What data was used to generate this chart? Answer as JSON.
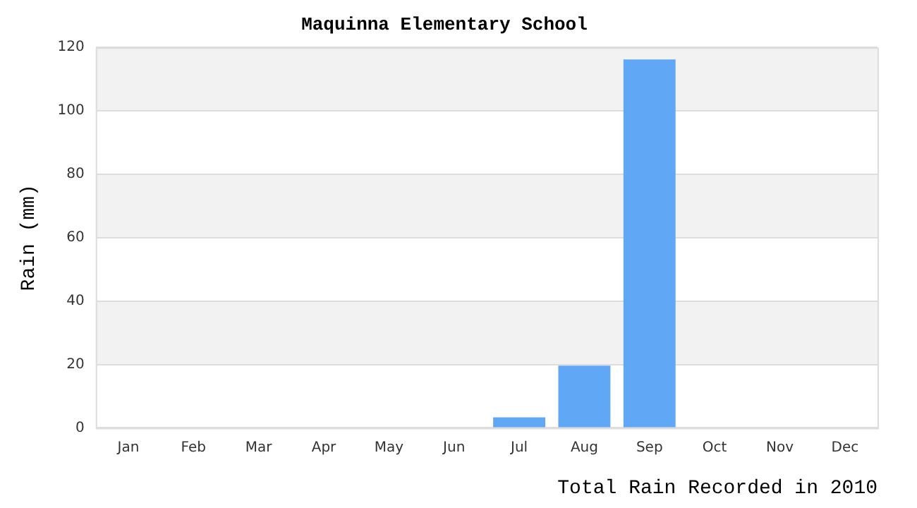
{
  "chart_data": {
    "type": "bar",
    "title": "Maquinna Elementary School",
    "xlabel": "Total Rain Recorded in 2010",
    "ylabel": "Rain (mm)",
    "categories": [
      "Jan",
      "Feb",
      "Mar",
      "Apr",
      "May",
      "Jun",
      "Jul",
      "Aug",
      "Sep",
      "Oct",
      "Nov",
      "Dec"
    ],
    "values": [
      0,
      0,
      0,
      0,
      0,
      0,
      3.3,
      19.6,
      116.2,
      0,
      0,
      0
    ],
    "color": "#60a8f5",
    "ylim": [
      0,
      120
    ],
    "yticks": [
      0,
      20,
      40,
      60,
      80,
      100,
      120
    ],
    "grid": "y",
    "legend": false
  }
}
